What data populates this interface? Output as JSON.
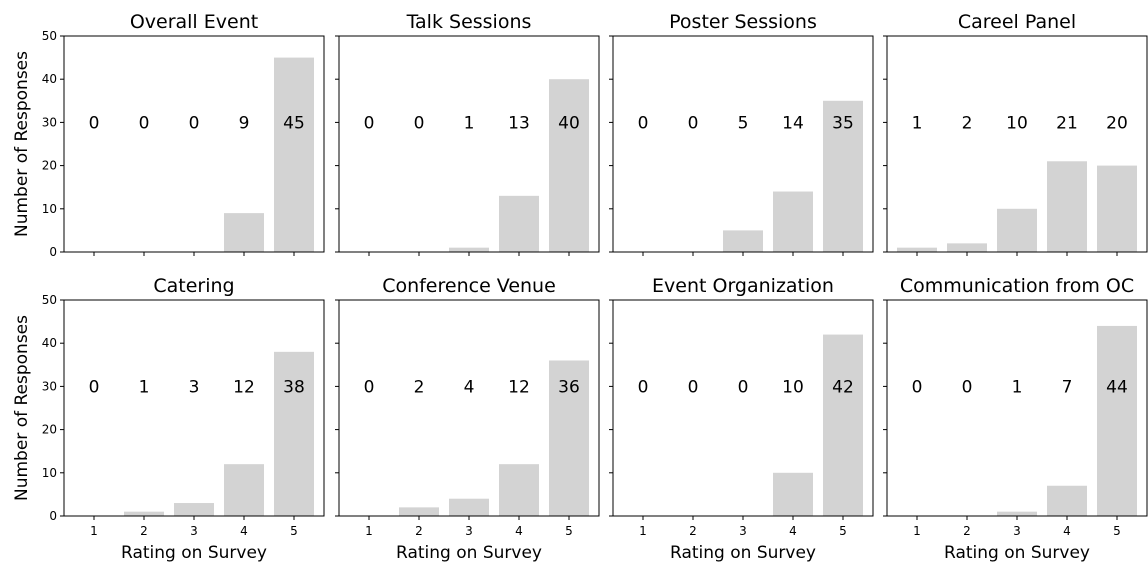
{
  "chart_data": {
    "type": "bar",
    "ylabel": "Number of Responses",
    "xlabel": "Rating on Survey",
    "categories": [
      "1",
      "2",
      "3",
      "4",
      "5"
    ],
    "ylim": [
      0,
      50
    ],
    "yticks": [
      0,
      10,
      20,
      30,
      40,
      50
    ],
    "bar_color": "#d3d3d3",
    "data_label_value": 30,
    "panels": [
      {
        "title": "Overall Event",
        "values": [
          0,
          0,
          0,
          9,
          45
        ]
      },
      {
        "title": "Talk Sessions",
        "values": [
          0,
          0,
          1,
          13,
          40
        ]
      },
      {
        "title": "Poster Sessions",
        "values": [
          0,
          0,
          5,
          14,
          35
        ]
      },
      {
        "title": "Careel Panel",
        "values": [
          1,
          2,
          10,
          21,
          20
        ]
      },
      {
        "title": "Catering",
        "values": [
          0,
          1,
          3,
          12,
          38
        ]
      },
      {
        "title": "Conference Venue",
        "values": [
          0,
          2,
          4,
          12,
          36
        ]
      },
      {
        "title": "Event Organization",
        "values": [
          0,
          0,
          0,
          10,
          42
        ]
      },
      {
        "title": "Communication from OC",
        "values": [
          0,
          0,
          1,
          7,
          44
        ]
      }
    ]
  }
}
